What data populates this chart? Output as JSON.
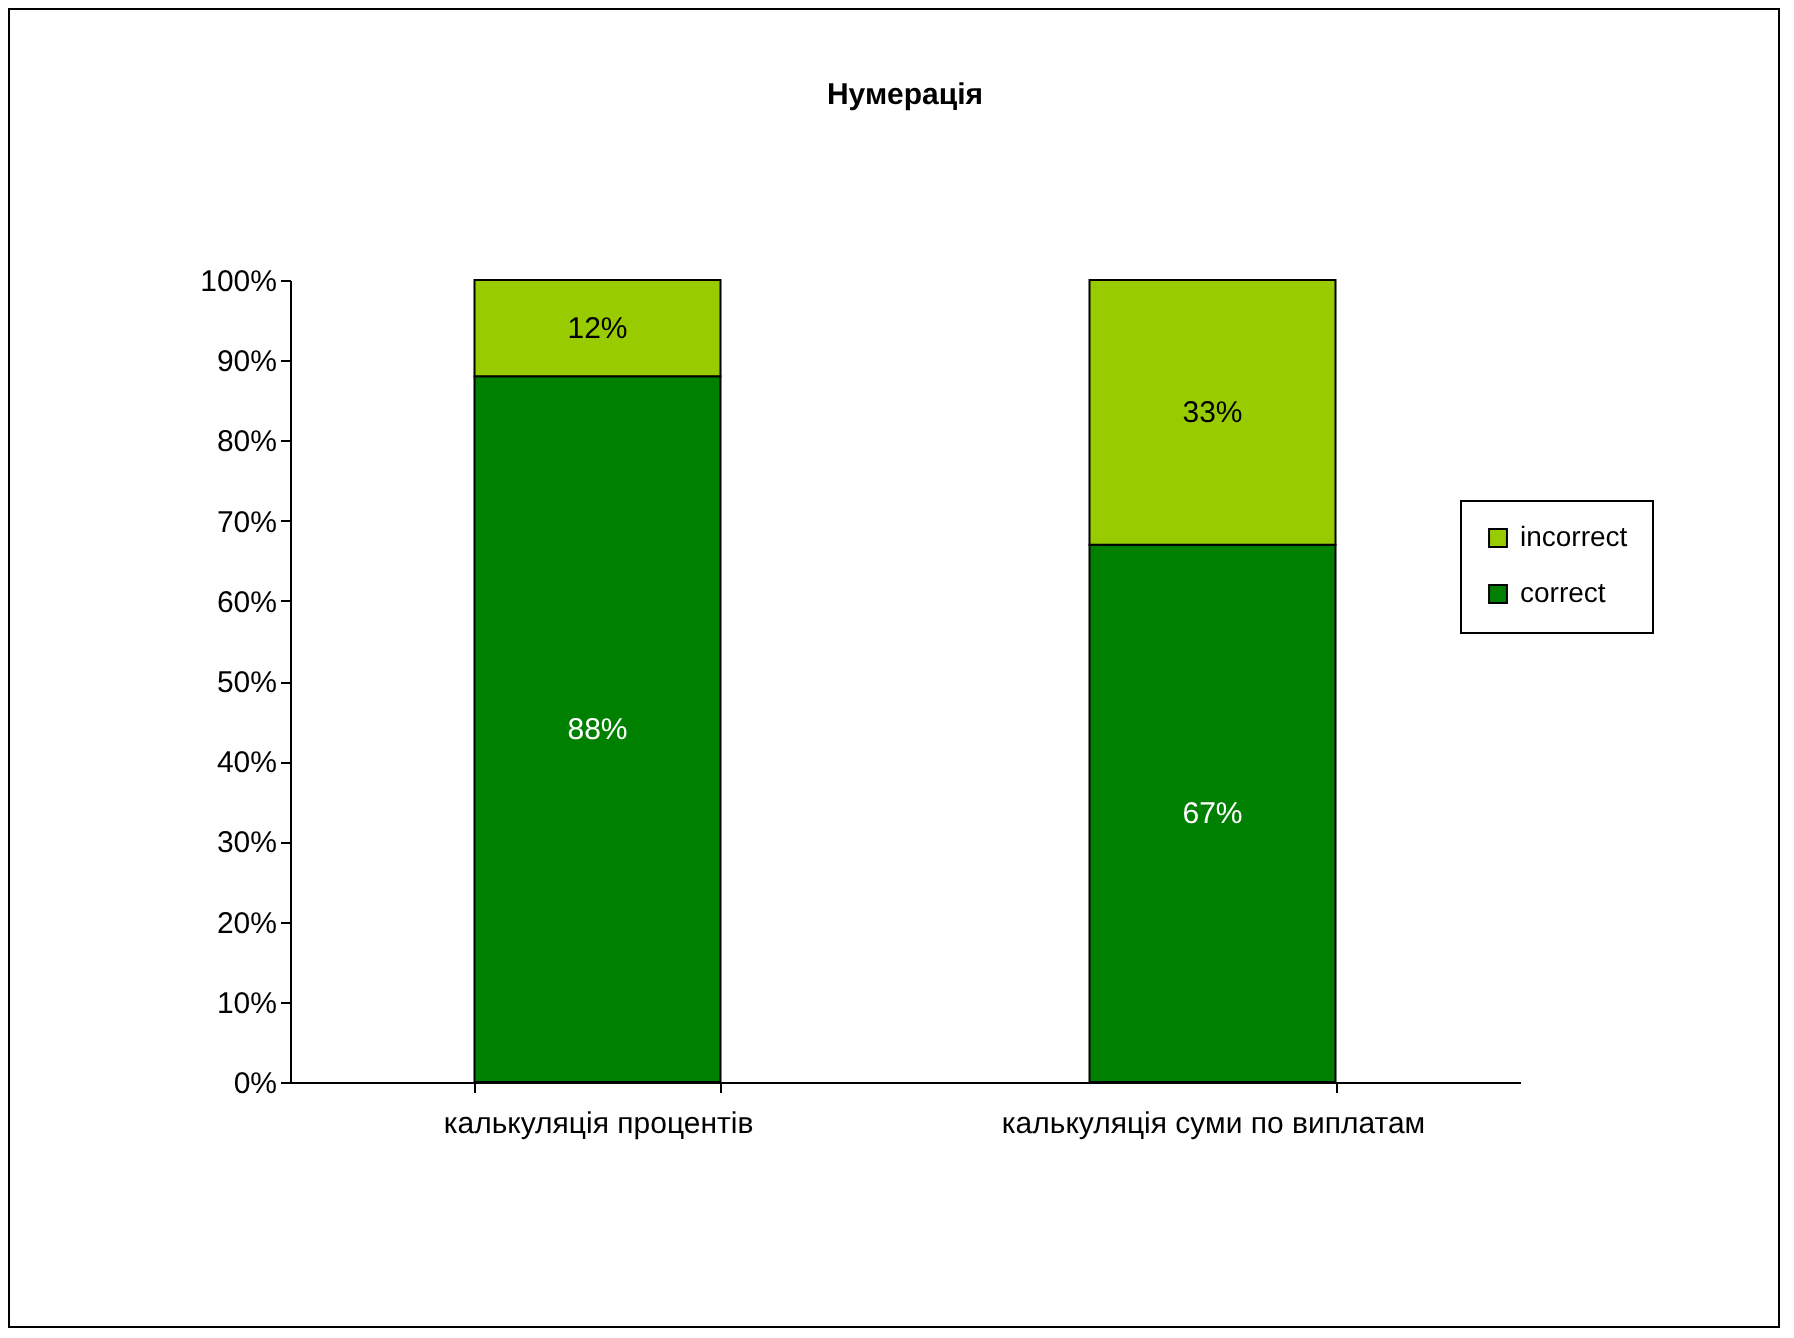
{
  "chart_data": {
    "type": "bar",
    "title": "Нумерація",
    "stacked": true,
    "categories": [
      "калькуляція процентів",
      "калькуляція суми по виплатам"
    ],
    "series": [
      {
        "name": "correct",
        "color": "#008000",
        "values": [
          88,
          67
        ],
        "value_labels": [
          "88%",
          "67%"
        ]
      },
      {
        "name": "incorrect",
        "color": "#99cc00",
        "values": [
          12,
          33
        ],
        "value_labels": [
          "12%",
          "33%"
        ]
      }
    ],
    "ylim": [
      0,
      100
    ],
    "yticks": [
      {
        "value": 0,
        "label": "0%"
      },
      {
        "value": 10,
        "label": "10%"
      },
      {
        "value": 20,
        "label": "20%"
      },
      {
        "value": 30,
        "label": "30%"
      },
      {
        "value": 40,
        "label": "40%"
      },
      {
        "value": 50,
        "label": "50%"
      },
      {
        "value": 60,
        "label": "60%"
      },
      {
        "value": 70,
        "label": "70%"
      },
      {
        "value": 80,
        "label": "80%"
      },
      {
        "value": 90,
        "label": "90%"
      },
      {
        "value": 100,
        "label": "100%"
      }
    ],
    "grid": false,
    "legend": "right"
  }
}
